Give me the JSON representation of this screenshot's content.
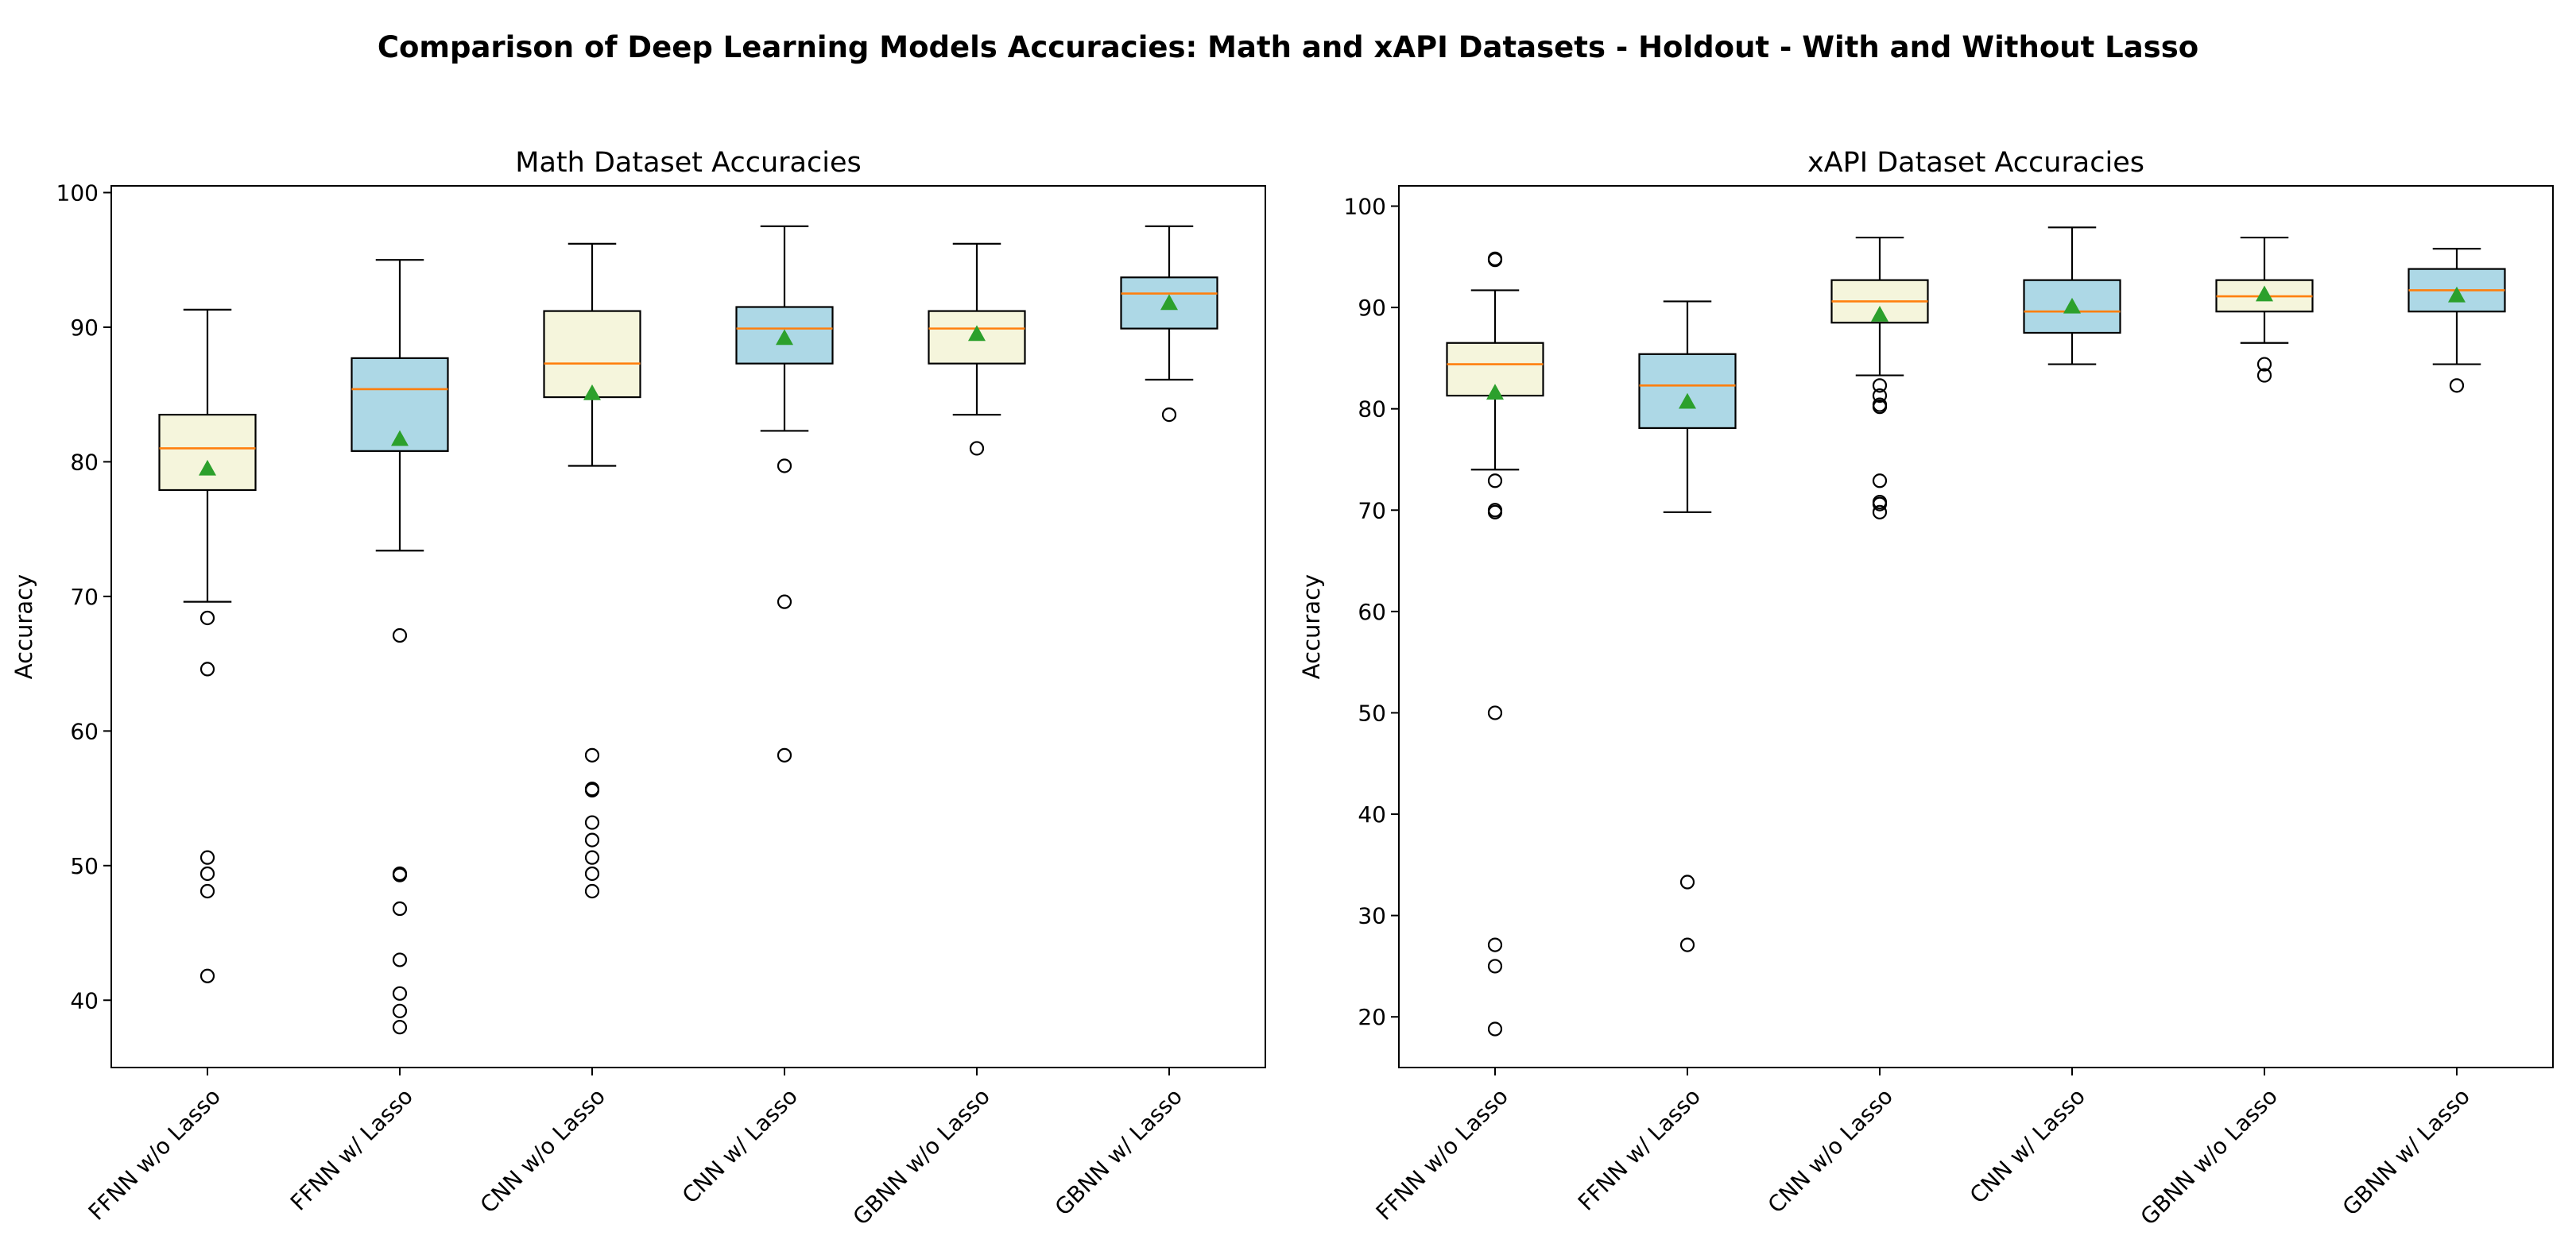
{
  "figure": {
    "title": "Comparison of Deep Learning Models Accuracies: Math and xAPI Datasets - Holdout - With and Without Lasso"
  },
  "colors": {
    "box_without_lasso": "#f5f5dc",
    "box_with_lasso": "#add8e6",
    "median": "#ff7f0e",
    "mean_marker": "#2ca02c",
    "outline": "#000000"
  },
  "chart_data": [
    {
      "type": "box",
      "title": "Math Dataset Accuracies",
      "xlabel": "",
      "ylabel": "Accuracy",
      "ylim": [
        35,
        100.5
      ],
      "yticks": [
        40,
        50,
        60,
        70,
        80,
        90,
        100
      ],
      "grid": false,
      "legend": "none",
      "categories": [
        "FFNN w/o Lasso",
        "FFNN w/ Lasso",
        "CNN w/o Lasso",
        "CNN w/ Lasso",
        "GBNN w/o Lasso",
        "GBNN w/ Lasso"
      ],
      "box_color_keys": [
        "box_without_lasso",
        "box_with_lasso",
        "box_without_lasso",
        "box_with_lasso",
        "box_without_lasso",
        "box_with_lasso"
      ],
      "boxes": [
        {
          "whislo": 69.6,
          "q1": 77.9,
          "med": 81.0,
          "q3": 83.5,
          "whishi": 91.3,
          "mean": 79.5,
          "fliers": [
            68.4,
            64.6,
            50.6,
            49.4,
            48.1,
            41.8
          ]
        },
        {
          "whislo": 73.4,
          "q1": 80.8,
          "med": 85.4,
          "q3": 87.7,
          "whishi": 95.0,
          "mean": 81.7,
          "fliers": [
            67.1,
            49.4,
            49.3,
            46.8,
            43.0,
            40.5,
            39.2,
            38.0
          ]
        },
        {
          "whislo": 79.7,
          "q1": 84.8,
          "med": 87.3,
          "q3": 91.2,
          "whishi": 96.2,
          "mean": 85.1,
          "fliers": [
            58.2,
            55.7,
            55.6,
            53.2,
            51.9,
            50.6,
            49.4,
            48.1
          ]
        },
        {
          "whislo": 82.3,
          "q1": 87.3,
          "med": 89.9,
          "q3": 91.5,
          "whishi": 97.5,
          "mean": 89.2,
          "fliers": [
            79.7,
            69.6,
            58.2
          ]
        },
        {
          "whislo": 83.5,
          "q1": 87.3,
          "med": 89.9,
          "q3": 91.2,
          "whishi": 96.2,
          "mean": 89.5,
          "fliers": [
            81.0
          ]
        },
        {
          "whislo": 86.1,
          "q1": 89.9,
          "med": 92.5,
          "q3": 93.7,
          "whishi": 97.5,
          "mean": 91.8,
          "fliers": [
            83.5
          ]
        }
      ]
    },
    {
      "type": "box",
      "title": "xAPI Dataset Accuracies",
      "xlabel": "",
      "ylabel": "Accuracy",
      "ylim": [
        15,
        102
      ],
      "yticks": [
        20,
        30,
        40,
        50,
        60,
        70,
        80,
        90,
        100
      ],
      "grid": false,
      "legend": "none",
      "categories": [
        "FFNN w/o Lasso",
        "FFNN w/ Lasso",
        "CNN w/o Lasso",
        "CNN w/ Lasso",
        "GBNN w/o Lasso",
        "GBNN w/ Lasso"
      ],
      "box_color_keys": [
        "box_without_lasso",
        "box_with_lasso",
        "box_without_lasso",
        "box_with_lasso",
        "box_without_lasso",
        "box_with_lasso"
      ],
      "boxes": [
        {
          "whislo": 74.0,
          "q1": 81.3,
          "med": 84.4,
          "q3": 86.5,
          "whishi": 91.7,
          "mean": 81.6,
          "fliers": [
            94.8,
            94.7,
            72.9,
            70.0,
            69.8,
            50.0,
            27.1,
            25.0,
            18.8
          ]
        },
        {
          "whislo": 69.8,
          "q1": 78.1,
          "med": 82.3,
          "q3": 85.4,
          "whishi": 90.6,
          "mean": 80.7,
          "fliers": [
            33.3,
            27.1
          ]
        },
        {
          "whislo": 83.3,
          "q1": 88.5,
          "med": 90.6,
          "q3": 92.7,
          "whishi": 96.9,
          "mean": 89.3,
          "fliers": [
            82.3,
            81.3,
            80.2,
            80.4,
            72.9,
            70.8,
            70.6,
            69.8
          ]
        },
        {
          "whislo": 84.4,
          "q1": 87.5,
          "med": 89.6,
          "q3": 92.7,
          "whishi": 97.9,
          "mean": 90.1,
          "fliers": []
        },
        {
          "whislo": 86.5,
          "q1": 89.6,
          "med": 91.1,
          "q3": 92.7,
          "whishi": 96.9,
          "mean": 91.3,
          "fliers": [
            84.4,
            83.3
          ]
        },
        {
          "whislo": 84.4,
          "q1": 89.6,
          "med": 91.7,
          "q3": 93.8,
          "whishi": 95.8,
          "mean": 91.2,
          "fliers": [
            82.3
          ]
        }
      ]
    }
  ]
}
